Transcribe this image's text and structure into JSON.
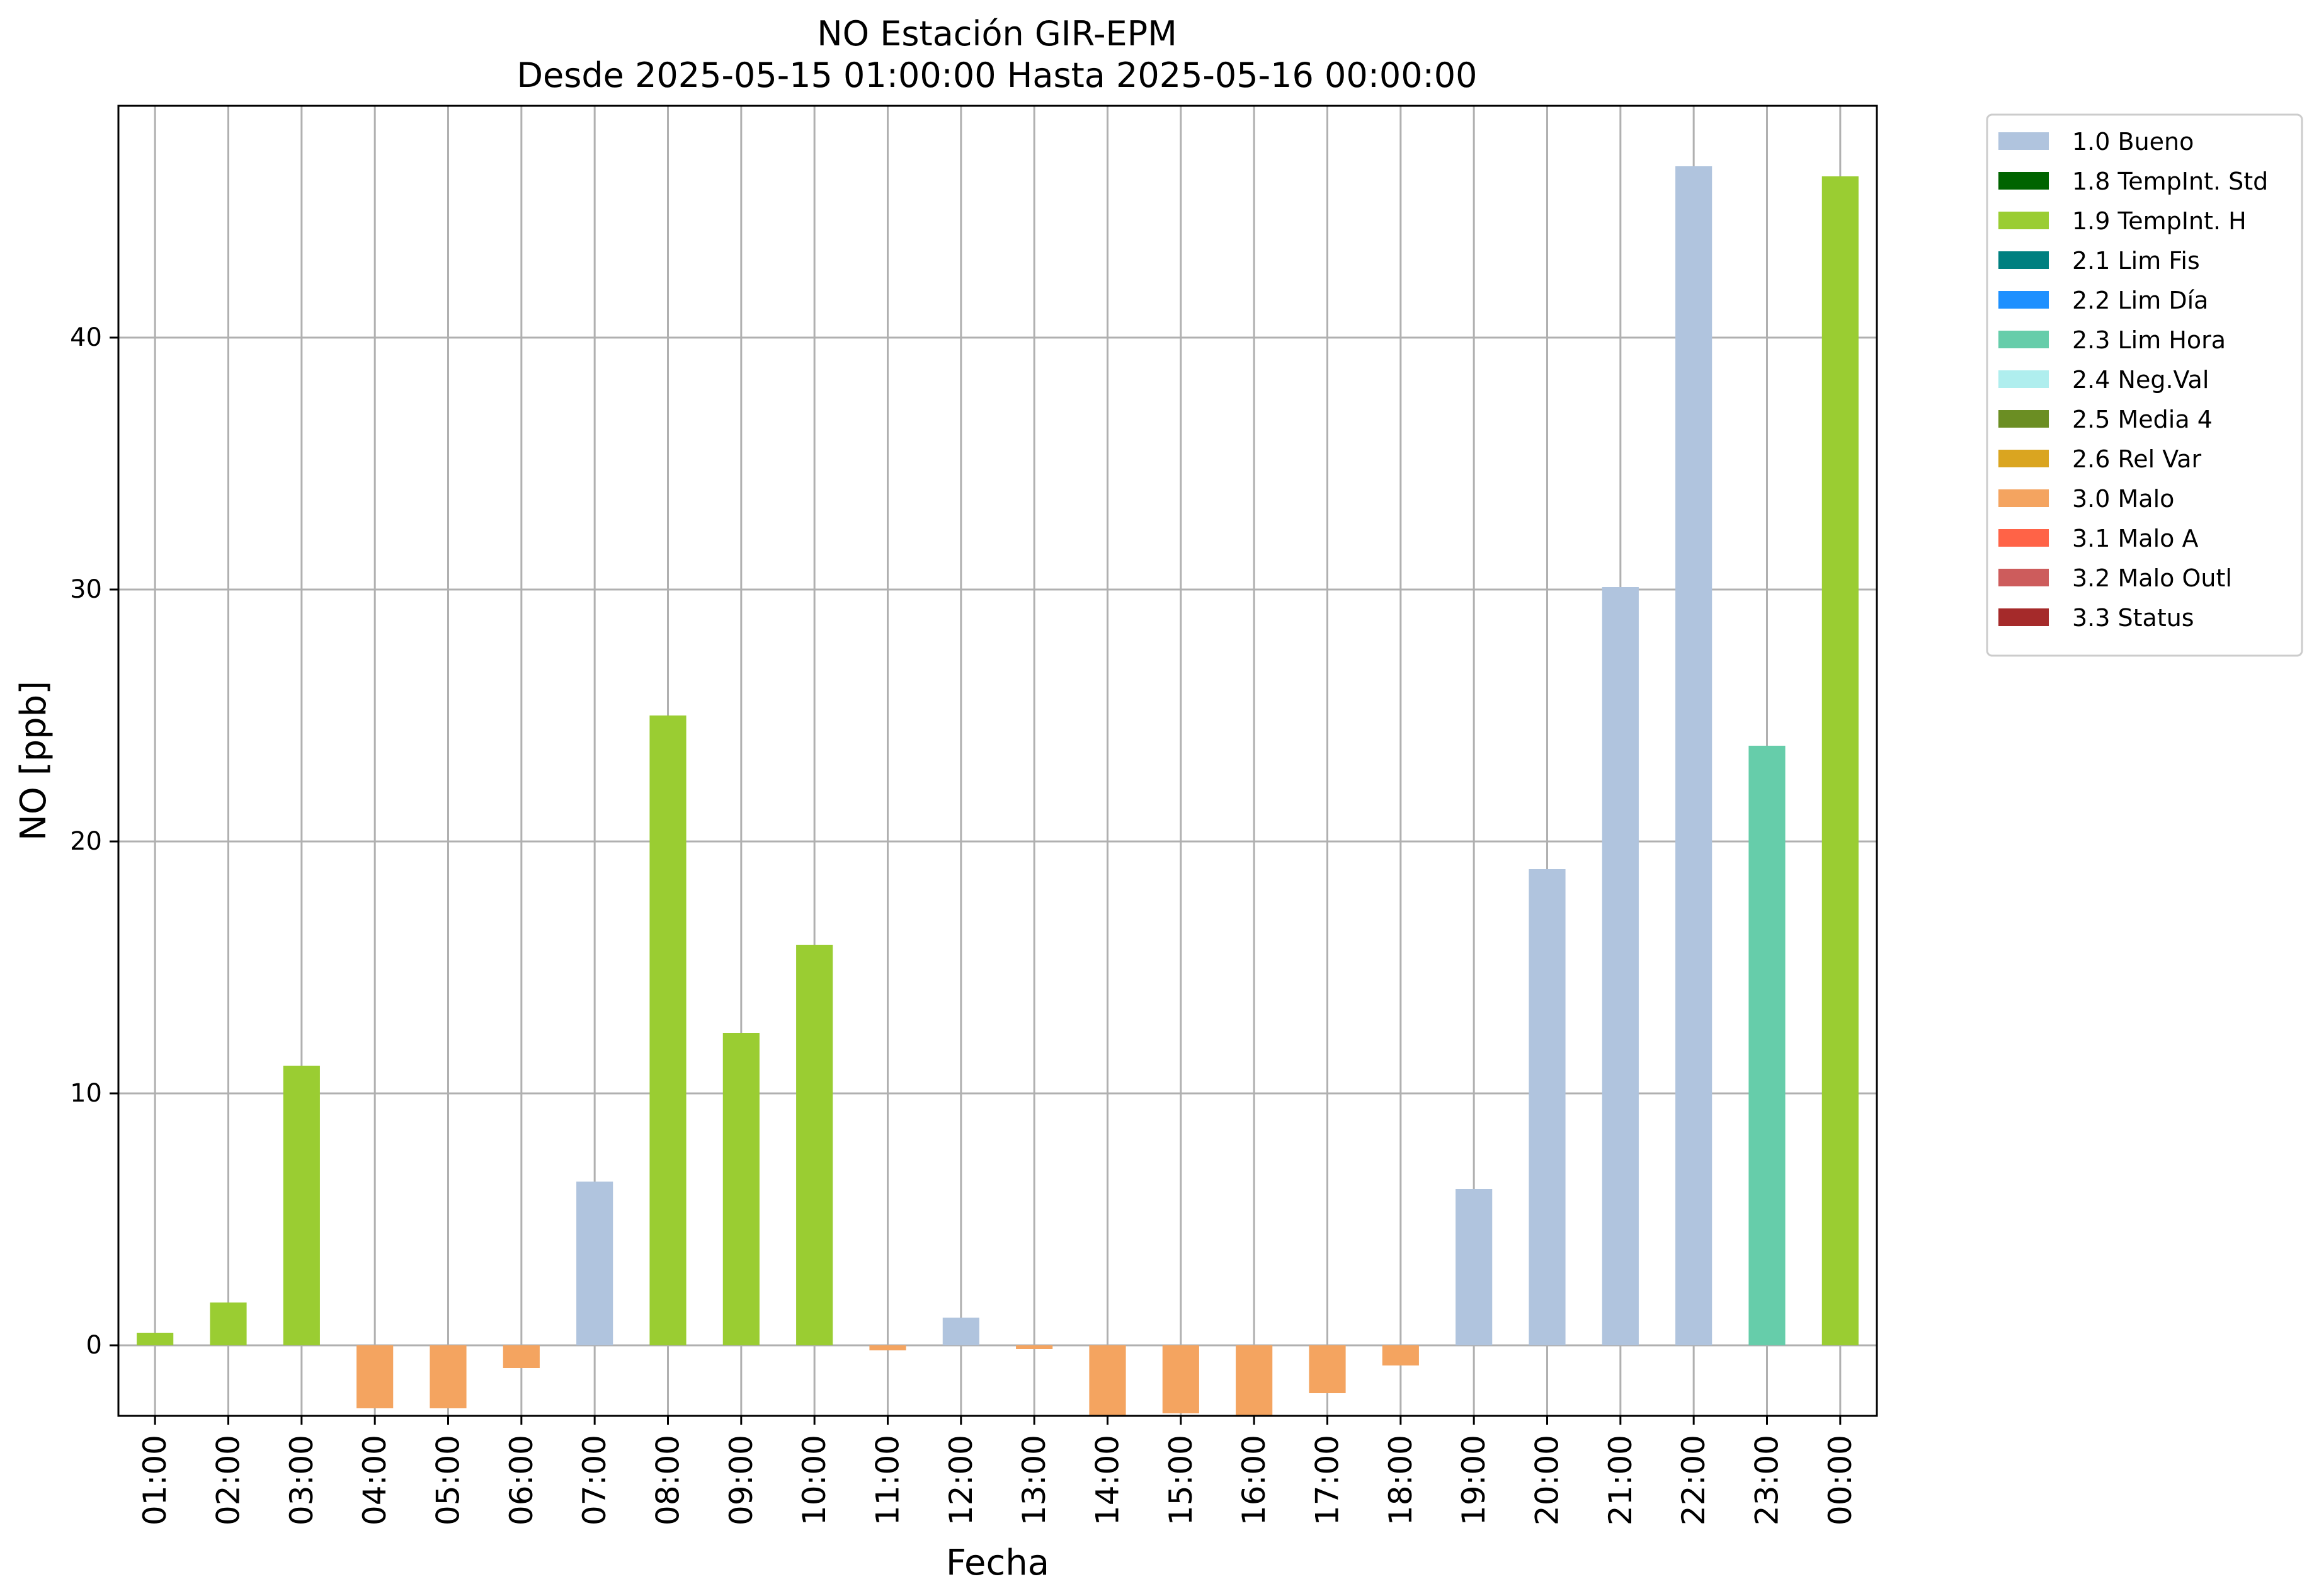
{
  "chart_data": {
    "type": "bar",
    "title": "NO Estación GIR-EPM",
    "subtitle": "Desde 2025-05-15 01:00:00 Hasta 2025-05-16 00:00:00",
    "xlabel": "Fecha",
    "ylabel": "NO [ppb]",
    "ylim": [
      -2.8,
      49.2
    ],
    "yticks": [
      "0",
      "10",
      "20",
      "30",
      "40"
    ],
    "grid": true,
    "legend_position": "outside-top-right",
    "categories": [
      "01:00",
      "02:00",
      "03:00",
      "04:00",
      "05:00",
      "06:00",
      "07:00",
      "08:00",
      "09:00",
      "10:00",
      "11:00",
      "12:00",
      "13:00",
      "14:00",
      "15:00",
      "16:00",
      "17:00",
      "18:00",
      "19:00",
      "20:00",
      "21:00",
      "22:00",
      "23:00",
      "00:00"
    ],
    "values": [
      0.5,
      1.7,
      11.1,
      -2.5,
      -2.5,
      -0.9,
      6.5,
      25.0,
      12.4,
      15.9,
      -0.2,
      1.1,
      -0.15,
      -2.8,
      -2.7,
      -2.8,
      -1.9,
      -0.8,
      6.2,
      18.9,
      30.1,
      46.8,
      23.8,
      46.4
    ],
    "flags": [
      "1.9",
      "1.9",
      "1.9",
      "3.0",
      "3.0",
      "3.0",
      "1.0",
      "1.9",
      "1.9",
      "1.9",
      "3.0",
      "1.0",
      "3.0",
      "3.0",
      "3.0",
      "3.0",
      "3.0",
      "3.0",
      "1.0",
      "1.0",
      "1.0",
      "1.0",
      "2.3",
      "1.9"
    ],
    "legend": [
      {
        "key": "1.0",
        "label": "1.0 Bueno",
        "color": "#b0c4de"
      },
      {
        "key": "1.8",
        "label": "1.8 TempInt. Std",
        "color": "#006400"
      },
      {
        "key": "1.9",
        "label": "1.9 TempInt. H",
        "color": "#9acd32"
      },
      {
        "key": "2.1",
        "label": "2.1 Lim Fis",
        "color": "#008080"
      },
      {
        "key": "2.2",
        "label": "2.2 Lim Día",
        "color": "#1e90ff"
      },
      {
        "key": "2.3",
        "label": "2.3 Lim Hora",
        "color": "#66cdaa"
      },
      {
        "key": "2.4",
        "label": "2.4 Neg.Val",
        "color": "#afeeee"
      },
      {
        "key": "2.5",
        "label": "2.5 Media 4",
        "color": "#6b8e23"
      },
      {
        "key": "2.6",
        "label": "2.6 Rel Var",
        "color": "#daa520"
      },
      {
        "key": "3.0",
        "label": "3.0 Malo",
        "color": "#f4a460"
      },
      {
        "key": "3.1",
        "label": "3.1 Malo A",
        "color": "#ff6347"
      },
      {
        "key": "3.2",
        "label": "3.2 Malo Outl",
        "color": "#cd5c5c"
      },
      {
        "key": "3.3",
        "label": "3.3 Status",
        "color": "#a52a2a"
      }
    ]
  }
}
